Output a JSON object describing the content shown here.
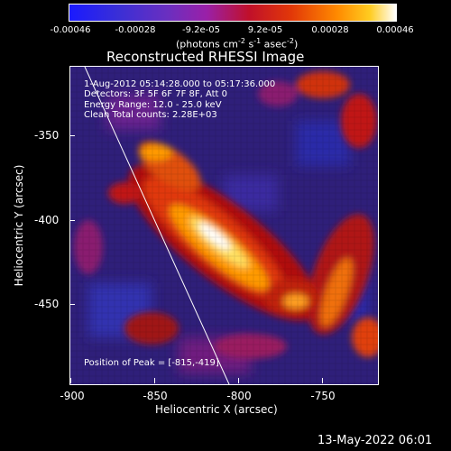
{
  "colorbar": {
    "ticks": [
      "-0.00046",
      "-0.00028",
      "-9.2e-05",
      "9.2e-05",
      "0.00028",
      "0.00046"
    ],
    "unit_text": "(photons cm",
    "unit_exp1": "-2",
    "unit_mid1": " s",
    "unit_exp2": "-1",
    "unit_mid2": " asec",
    "unit_exp3": "-2",
    "unit_end": ")"
  },
  "title": "Reconstructed RHESSI Image",
  "annotations": {
    "time": "1-Aug-2012 05:14:28.000 to 05:17:36.000",
    "detectors": "Detectors: 3F 5F 6F 7F 8F, Att 0",
    "energy": "Energy Range: 12.0 - 25.0 keV",
    "clean": "Clean     Total counts: 2.28E+03",
    "peak": "Position of Peak = [-815,-419]"
  },
  "axes": {
    "xlabel": "Heliocentric X (arcsec)",
    "ylabel": "Heliocentric Y (arcsec)",
    "xticks": [
      "-900",
      "-850",
      "-800",
      "-750"
    ],
    "yticks": [
      "-350",
      "-400",
      "-450"
    ]
  },
  "footer": {
    "date": "13-May-2022 06:01"
  }
}
